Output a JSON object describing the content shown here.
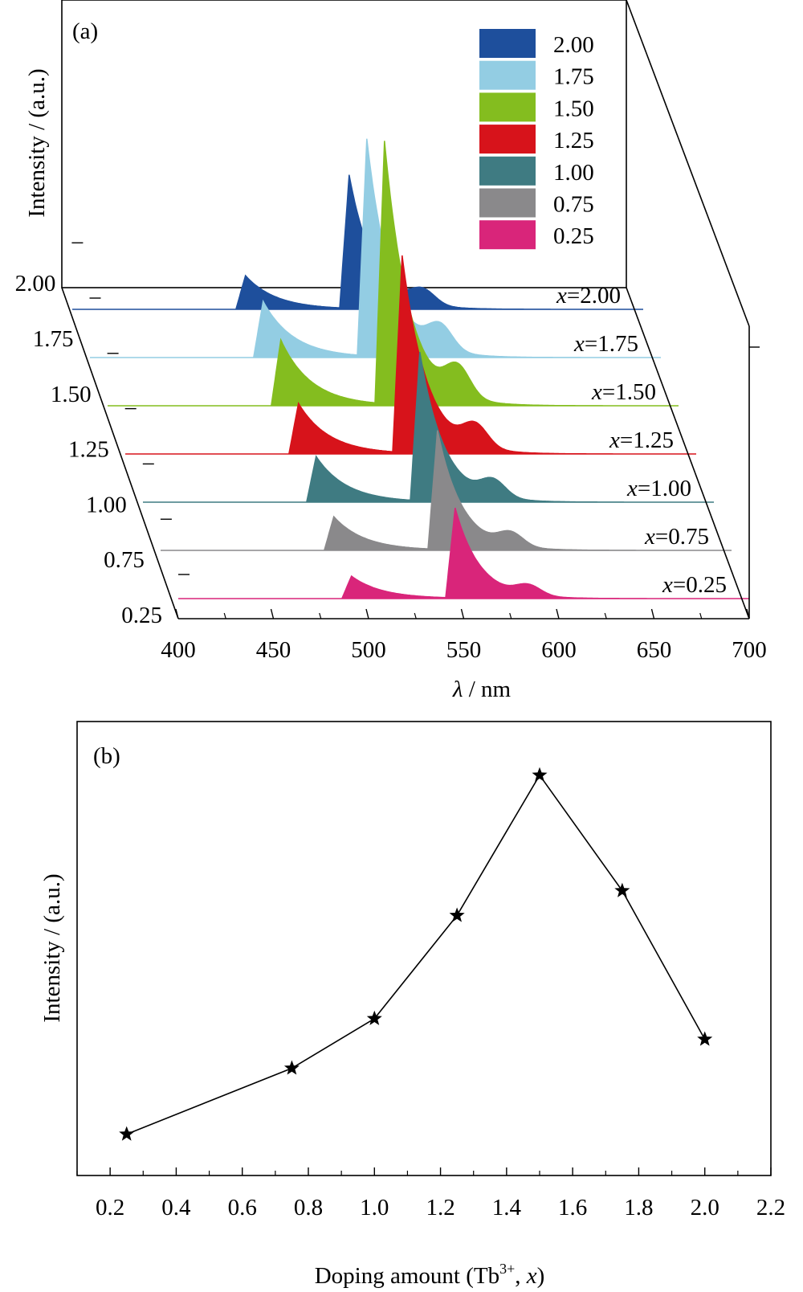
{
  "chart_data": [
    {
      "panel": "(a)",
      "type": "area",
      "style": "waterfall-3d",
      "xlabel_sym": "λ",
      "xlabel_unit": " / nm",
      "ylabel": "Intensity / (a.u.)",
      "xlim": [
        400,
        700
      ],
      "xticks": [
        "400",
        "450",
        "500",
        "550",
        "600",
        "650",
        "700"
      ],
      "depth_ticks": [
        "0.25",
        "0.75",
        "1.00",
        "1.25",
        "1.50",
        "1.75",
        "2.00"
      ],
      "legend_position": "top-right",
      "legend": [
        {
          "label": "2.00",
          "color": "#1e4f9c"
        },
        {
          "label": "1.75",
          "color": "#93cde3"
        },
        {
          "label": "1.50",
          "color": "#84bd1f"
        },
        {
          "label": "1.25",
          "color": "#d7131b"
        },
        {
          "label": "1.00",
          "color": "#3f7b82"
        },
        {
          "label": "0.75",
          "color": "#8a898b"
        },
        {
          "label": "0.25",
          "color": "#d9257a"
        }
      ],
      "series": [
        {
          "name": "0.25",
          "x_prefix": "x",
          "x_value": "=0.25",
          "color": "#d9257a",
          "peak_490": 28,
          "peak_545": 112
        },
        {
          "name": "0.75",
          "x_prefix": "x",
          "x_value": "=0.75",
          "color": "#8a898b",
          "peak_490": 42,
          "peak_545": 148
        },
        {
          "name": "1.00",
          "x_prefix": "x",
          "x_value": "=1.00",
          "color": "#3f7b82",
          "peak_490": 57,
          "peak_545": 185
        },
        {
          "name": "1.25",
          "x_prefix": "x",
          "x_value": "=1.25",
          "color": "#d7131b",
          "peak_490": 63,
          "peak_545": 245
        },
        {
          "name": "1.50",
          "x_prefix": "x",
          "x_value": "=1.50",
          "color": "#84bd1f",
          "peak_490": 82,
          "peak_545": 327
        },
        {
          "name": "1.75",
          "x_prefix": "x",
          "x_value": "=1.75",
          "color": "#93cde3",
          "peak_490": 70,
          "peak_545": 270
        },
        {
          "name": "2.00",
          "x_prefix": "x",
          "x_value": "=2.00",
          "color": "#1e4f9c",
          "peak_490": 42,
          "peak_545": 166
        }
      ]
    },
    {
      "panel": "(b)",
      "type": "line",
      "marker": "star",
      "xlabel_main": "Doping amount (Tb",
      "xlabel_sup": "3+",
      "xlabel_sep": ", ",
      "xlabel_var": "x",
      "xlabel_end": ")",
      "ylabel": "Intensity / (a.u.)",
      "xlim": [
        0.1,
        2.2
      ],
      "ylim": [
        0,
        1.1
      ],
      "xticks": [
        "0.2",
        "0.4",
        "0.6",
        "0.8",
        "1.0",
        "1.2",
        "1.4",
        "1.6",
        "1.8",
        "2.0",
        "2.2"
      ],
      "x": [
        0.25,
        0.75,
        1.0,
        1.25,
        1.5,
        1.75,
        2.0
      ],
      "y": [
        0.1,
        0.26,
        0.38,
        0.63,
        0.97,
        0.69,
        0.33
      ]
    }
  ]
}
